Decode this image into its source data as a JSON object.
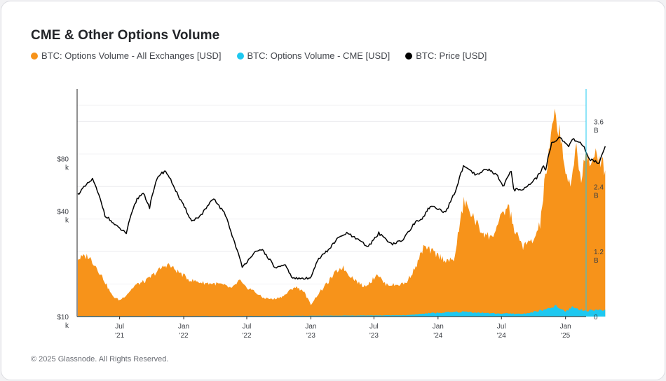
{
  "title": "CME & Other Options Volume",
  "legend": [
    {
      "label": "BTC: Options Volume - All Exchanges [USD]",
      "color": "#f7931a"
    },
    {
      "label": "BTC: Options Volume - CME [USD]",
      "color": "#1ec8f0"
    },
    {
      "label": "BTC: Price [USD]",
      "color": "#000000"
    }
  ],
  "footer": "© 2025 Glassnode. All Rights Reserved.",
  "chart_data": {
    "type": "area",
    "title": "CME & Other Options Volume",
    "x_start": "2021-03-01",
    "x_end": "2025-03-01",
    "x_ticks": [
      {
        "date": "2021-07-01",
        "line1": "Jul",
        "line2": "'21"
      },
      {
        "date": "2022-01-01",
        "line1": "Jan",
        "line2": "'22"
      },
      {
        "date": "2022-07-01",
        "line1": "Jul",
        "line2": "'22"
      },
      {
        "date": "2023-01-01",
        "line1": "Jan",
        "line2": "'23"
      },
      {
        "date": "2023-07-01",
        "line1": "Jul",
        "line2": "'23"
      },
      {
        "date": "2024-01-01",
        "line1": "Jan",
        "line2": "'24"
      },
      {
        "date": "2024-07-01",
        "line1": "Jul",
        "line2": "'24"
      },
      {
        "date": "2025-01-01",
        "line1": "Jan",
        "line2": "'25"
      }
    ],
    "y_left": {
      "scale": "log",
      "range": [
        10000,
        200000
      ],
      "ticks": [
        {
          "value": 80000,
          "line1": "$80",
          "line2": "k"
        },
        {
          "value": 40000,
          "line1": "$40",
          "line2": "k"
        },
        {
          "value": 10000,
          "line1": "$10",
          "line2": "k"
        }
      ]
    },
    "y_right": {
      "scale": "linear",
      "range": [
        0,
        4200000000
      ],
      "ticks": [
        {
          "value": 3600000000,
          "line1": "3.6",
          "line2": "B"
        },
        {
          "value": 2400000000,
          "line1": "2.4",
          "line2": "B"
        },
        {
          "value": 1200000000,
          "line1": "1.2",
          "line2": "B"
        },
        {
          "value": 0,
          "line1": "0",
          "line2": ""
        }
      ]
    },
    "grid": true,
    "series": [
      {
        "name": "BTC: Options Volume - All Exchanges [USD]",
        "color": "#f7931a",
        "axis": "right",
        "points": [
          [
            "2021-03-03",
            1070000000.0
          ],
          [
            "2021-04-01",
            1120000000.0
          ],
          [
            "2021-04-20",
            970000000.0
          ],
          [
            "2021-05-15",
            700000000.0
          ],
          [
            "2021-06-10",
            380000000.0
          ],
          [
            "2021-07-01",
            300000000.0
          ],
          [
            "2021-07-20",
            400000000.0
          ],
          [
            "2021-08-15",
            580000000.0
          ],
          [
            "2021-09-15",
            660000000.0
          ],
          [
            "2021-10-20",
            850000000.0
          ],
          [
            "2021-11-15",
            970000000.0
          ],
          [
            "2021-12-15",
            830000000.0
          ],
          [
            "2022-01-20",
            670000000.0
          ],
          [
            "2022-03-01",
            620000000.0
          ],
          [
            "2022-04-15",
            600000000.0
          ],
          [
            "2022-05-20",
            520000000.0
          ],
          [
            "2022-06-10",
            670000000.0
          ],
          [
            "2022-06-25",
            550000000.0
          ],
          [
            "2022-07-15",
            500000000.0
          ],
          [
            "2022-08-15",
            350000000.0
          ],
          [
            "2022-09-15",
            320000000.0
          ],
          [
            "2022-10-15",
            380000000.0
          ],
          [
            "2022-11-15",
            550000000.0
          ],
          [
            "2022-12-10",
            480000000.0
          ],
          [
            "2023-01-01",
            220000000.0
          ],
          [
            "2023-01-20",
            400000000.0
          ],
          [
            "2023-02-15",
            600000000.0
          ],
          [
            "2023-03-15",
            830000000.0
          ],
          [
            "2023-04-01",
            920000000.0
          ],
          [
            "2023-04-20",
            780000000.0
          ],
          [
            "2023-06-01",
            550000000.0
          ],
          [
            "2023-06-25",
            660000000.0
          ],
          [
            "2023-07-10",
            800000000.0
          ],
          [
            "2023-08-01",
            600000000.0
          ],
          [
            "2023-09-01",
            580000000.0
          ],
          [
            "2023-10-01",
            620000000.0
          ],
          [
            "2023-11-01",
            950000000.0
          ],
          [
            "2023-11-20",
            1280000000.0
          ],
          [
            "2023-12-20",
            1180000000.0
          ],
          [
            "2024-01-20",
            1050000000.0
          ],
          [
            "2024-02-15",
            1020000000.0
          ],
          [
            "2024-03-01",
            1600000000.0
          ],
          [
            "2024-03-15",
            2120000000.0
          ],
          [
            "2024-04-01",
            1950000000.0
          ],
          [
            "2024-05-01",
            1600000000.0
          ],
          [
            "2024-06-01",
            1450000000.0
          ],
          [
            "2024-07-01",
            1820000000.0
          ],
          [
            "2024-07-20",
            2050000000.0
          ],
          [
            "2024-08-10",
            1550000000.0
          ],
          [
            "2024-09-01",
            1300000000.0
          ],
          [
            "2024-10-01",
            1400000000.0
          ],
          [
            "2024-10-20",
            1700000000.0
          ],
          [
            "2024-11-01",
            2400000000.0
          ],
          [
            "2024-11-20",
            3250000000.0
          ],
          [
            "2024-12-01",
            3700000000.0
          ],
          [
            "2024-12-15",
            3450000000.0
          ],
          [
            "2025-01-01",
            2700000000.0
          ],
          [
            "2025-01-15",
            2300000000.0
          ],
          [
            "2025-02-01",
            3200000000.0
          ],
          [
            "2025-02-15",
            2500000000.0
          ],
          [
            "2025-03-01",
            3100000000.0
          ],
          [
            "2025-03-15",
            2700000000.0
          ],
          [
            "2025-04-01",
            3050000000.0
          ],
          [
            "2025-04-15",
            2850000000.0
          ],
          [
            "2025-04-25",
            2700000000.0
          ]
        ]
      },
      {
        "name": "BTC: Options Volume - CME [USD]",
        "color": "#1ec8f0",
        "axis": "right",
        "points": [
          [
            "2021-03-03",
            10000000.0
          ],
          [
            "2022-06-01",
            10000000.0
          ],
          [
            "2023-01-01",
            15000000.0
          ],
          [
            "2023-06-01",
            20000000.0
          ],
          [
            "2023-10-01",
            25000000.0
          ],
          [
            "2023-12-01",
            60000000.0
          ],
          [
            "2024-03-15",
            90000000.0
          ],
          [
            "2024-06-01",
            60000000.0
          ],
          [
            "2024-09-01",
            50000000.0
          ],
          [
            "2024-11-15",
            140000000.0
          ],
          [
            "2024-12-01",
            200000000.0
          ],
          [
            "2025-01-01",
            90000000.0
          ],
          [
            "2025-01-20",
            180000000.0
          ],
          [
            "2025-02-20",
            110000000.0
          ],
          [
            "2025-04-25",
            130000000.0
          ]
        ]
      },
      {
        "name": "BTC: Price [USD]",
        "color": "#000000",
        "axis": "left",
        "points": [
          [
            "2021-03-03",
            50000
          ],
          [
            "2021-04-14",
            61000
          ],
          [
            "2021-05-20",
            38000
          ],
          [
            "2021-06-20",
            33000
          ],
          [
            "2021-07-20",
            30000
          ],
          [
            "2021-08-20",
            47000
          ],
          [
            "2021-09-07",
            51000
          ],
          [
            "2021-09-25",
            42000
          ],
          [
            "2021-10-20",
            64000
          ],
          [
            "2021-11-10",
            68000
          ],
          [
            "2021-12-20",
            47000
          ],
          [
            "2022-01-24",
            35000
          ],
          [
            "2022-02-20",
            38000
          ],
          [
            "2022-03-28",
            47000
          ],
          [
            "2022-05-01",
            38000
          ],
          [
            "2022-05-20",
            29000
          ],
          [
            "2022-06-18",
            19000
          ],
          [
            "2022-07-20",
            23000
          ],
          [
            "2022-08-15",
            24000
          ],
          [
            "2022-09-20",
            19000
          ],
          [
            "2022-10-20",
            19500
          ],
          [
            "2022-11-10",
            16500
          ],
          [
            "2022-12-30",
            16500
          ],
          [
            "2023-01-20",
            21000
          ],
          [
            "2023-02-20",
            24000
          ],
          [
            "2023-03-20",
            28000
          ],
          [
            "2023-04-14",
            30000
          ],
          [
            "2023-06-15",
            25000
          ],
          [
            "2023-07-15",
            30000
          ],
          [
            "2023-08-20",
            26000
          ],
          [
            "2023-09-20",
            27000
          ],
          [
            "2023-10-25",
            34000
          ],
          [
            "2023-11-20",
            37000
          ],
          [
            "2023-12-10",
            43000
          ],
          [
            "2024-01-23",
            39000
          ],
          [
            "2024-02-20",
            52000
          ],
          [
            "2024-03-14",
            72000
          ],
          [
            "2024-04-20",
            64000
          ],
          [
            "2024-05-20",
            70000
          ],
          [
            "2024-06-20",
            64000
          ],
          [
            "2024-07-05",
            55000
          ],
          [
            "2024-07-29",
            68000
          ],
          [
            "2024-08-05",
            53000
          ],
          [
            "2024-09-06",
            54000
          ],
          [
            "2024-10-10",
            62000
          ],
          [
            "2024-10-30",
            72000
          ],
          [
            "2024-11-05",
            68000
          ],
          [
            "2024-11-22",
            98000
          ],
          [
            "2024-12-17",
            106000
          ],
          [
            "2025-01-10",
            93000
          ],
          [
            "2025-01-21",
            104000
          ],
          [
            "2025-02-20",
            96000
          ],
          [
            "2025-03-10",
            79000
          ],
          [
            "2025-04-08",
            76000
          ],
          [
            "2025-04-25",
            94000
          ]
        ]
      }
    ]
  }
}
